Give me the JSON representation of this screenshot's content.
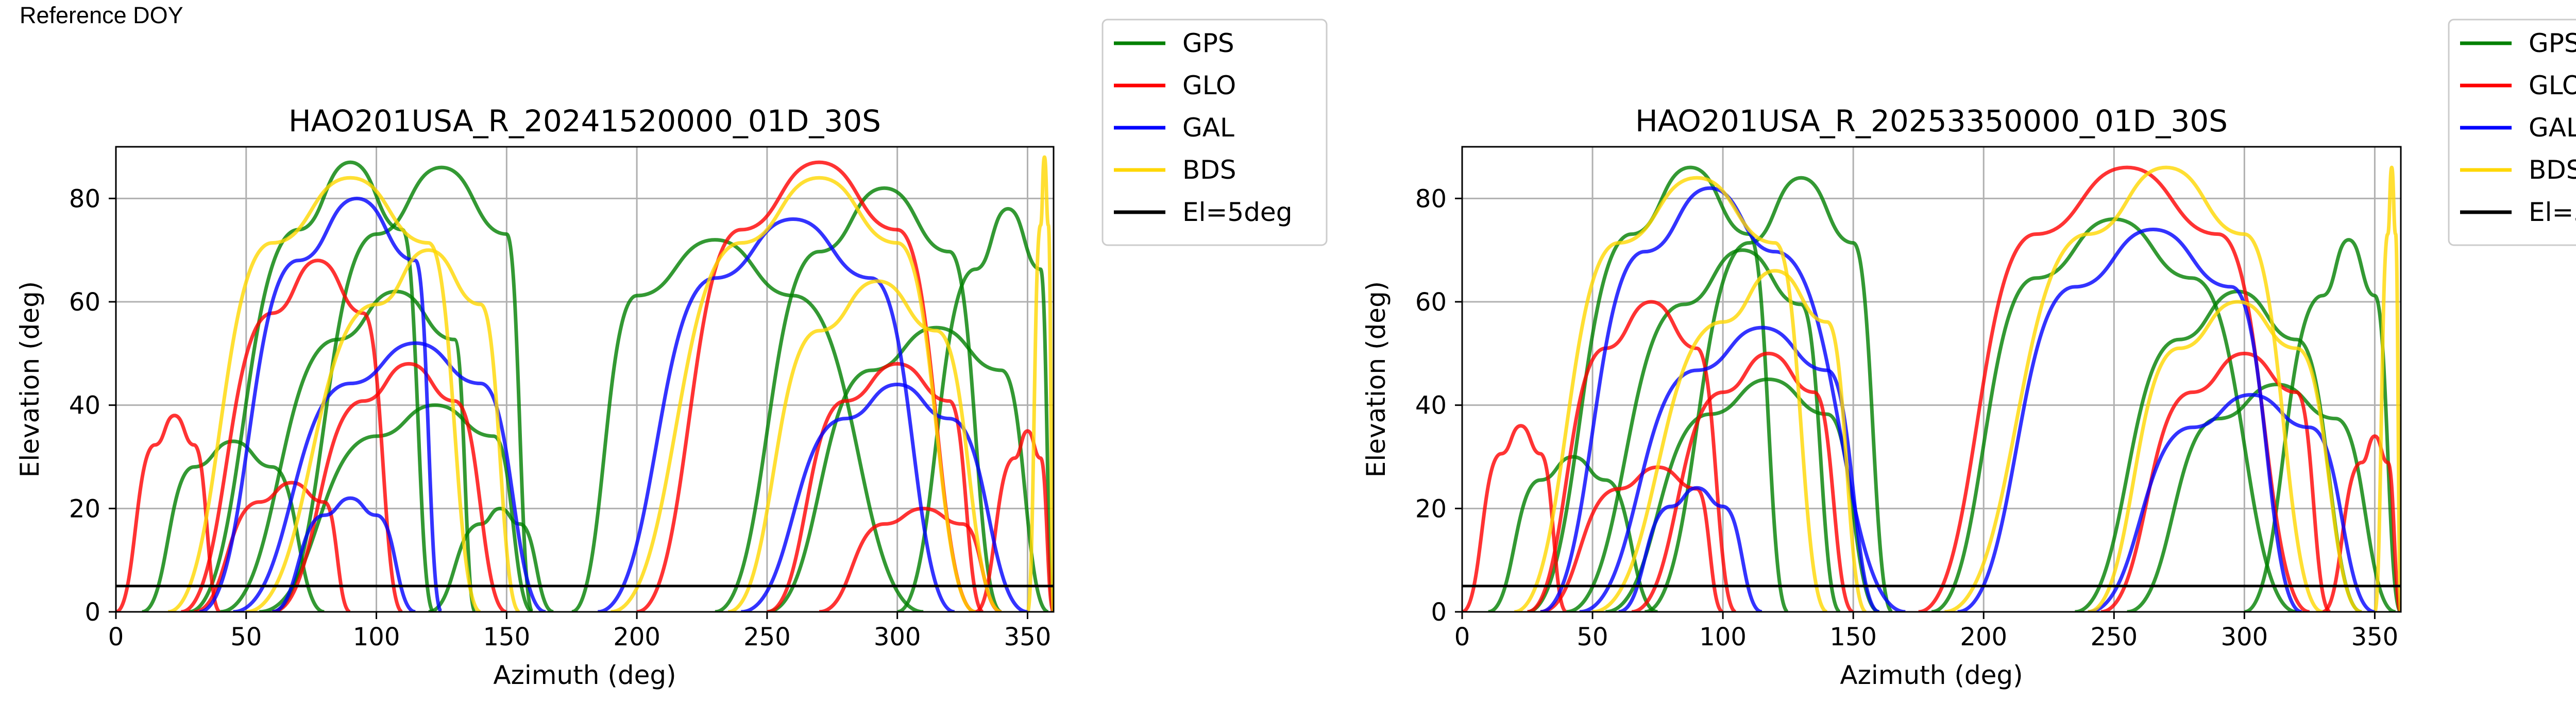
{
  "header": {
    "reference_label": "Reference DOY"
  },
  "legend_items": [
    {
      "label": "GPS",
      "color": "#008000"
    },
    {
      "label": "GLO",
      "color": "#ff0000"
    },
    {
      "label": "GAL",
      "color": "#0000ff"
    },
    {
      "label": "BDS",
      "color": "#ffd700"
    },
    {
      "label": "El=5deg",
      "color": "#000000"
    }
  ],
  "chart_data": [
    {
      "type": "scatter",
      "title": "HAO201USA_R_20241520000_01D_30S",
      "xlabel": "Azimuth (deg)",
      "ylabel": "Elevation (deg)",
      "xlim": [
        0,
        360
      ],
      "ylim": [
        0,
        90
      ],
      "xticks": [
        0,
        50,
        100,
        150,
        200,
        250,
        300,
        350
      ],
      "yticks": [
        0,
        20,
        40,
        60,
        80
      ],
      "grid": true,
      "legend_position": "outside-right",
      "elevation_mask_deg": 5,
      "series": [
        {
          "name": "GPS",
          "color": "#008000",
          "passes": [
            {
              "az": [
                28,
                70,
                110,
                122
              ],
              "peak": 87
            },
            {
              "az": [
                40,
                85,
                130,
                138
              ],
              "peak": 62
            },
            {
              "az": [
                55,
                100,
                145,
                160
              ],
              "peak": 40
            },
            {
              "az": [
                160,
                150,
                100,
                60
              ],
              "peak": 86
            },
            {
              "az": [
                175,
                200,
                260,
                310
              ],
              "peak": 72
            },
            {
              "az": [
                230,
                270,
                320,
                340
              ],
              "peak": 82
            },
            {
              "az": [
                250,
                290,
                340,
                358
              ],
              "peak": 55
            },
            {
              "az": [
                300,
                330,
                355,
                360
              ],
              "peak": 78
            },
            {
              "az": [
                10,
                30,
                60,
                80
              ],
              "peak": 33
            },
            {
              "az": [
                120,
                140,
                155,
                168
              ],
              "peak": 20
            }
          ]
        },
        {
          "name": "GLO",
          "color": "#ff0000",
          "passes": [
            {
              "az": [
                25,
                60,
                95,
                110
              ],
              "peak": 68
            },
            {
              "az": [
                30,
                55,
                80,
                90
              ],
              "peak": 25
            },
            {
              "az": [
                0,
                15,
                30,
                40
              ],
              "peak": 38
            },
            {
              "az": [
                200,
                240,
                300,
                330
              ],
              "peak": 87
            },
            {
              "az": [
                250,
                280,
                320,
                333
              ],
              "peak": 48
            },
            {
              "az": [
                330,
                345,
                355,
                360
              ],
              "peak": 35
            },
            {
              "az": [
                60,
                95,
                130,
                150
              ],
              "peak": 48
            },
            {
              "az": [
                270,
                295,
                325,
                340
              ],
              "peak": 20
            }
          ]
        },
        {
          "name": "GAL",
          "color": "#0000ff",
          "passes": [
            {
              "az": [
                32,
                70,
                115,
                125
              ],
              "peak": 80
            },
            {
              "az": [
                45,
                90,
                140,
                165
              ],
              "peak": 52
            },
            {
              "az": [
                185,
                230,
                290,
                322
              ],
              "peak": 76
            },
            {
              "az": [
                240,
                280,
                320,
                350
              ],
              "peak": 44
            },
            {
              "az": [
                60,
                80,
                100,
                115
              ],
              "peak": 22
            }
          ]
        },
        {
          "name": "BDS",
          "color": "#ffd700",
          "passes": [
            {
              "az": [
                20,
                60,
                120,
                140
              ],
              "peak": 84
            },
            {
              "az": [
                50,
                100,
                140,
                155
              ],
              "peak": 70
            },
            {
              "az": [
                190,
                240,
                300,
                330
              ],
              "peak": 84
            },
            {
              "az": [
                235,
                270,
                315,
                340
              ],
              "peak": 64
            },
            {
              "az": [
                350,
                355,
                358,
                360
              ],
              "peak": 88
            }
          ]
        }
      ]
    },
    {
      "type": "scatter",
      "title": "HAO201USA_R_20253350000_01D_30S",
      "xlabel": "Azimuth (deg)",
      "ylabel": "Elevation (deg)",
      "xlim": [
        0,
        360
      ],
      "ylim": [
        0,
        90
      ],
      "xticks": [
        0,
        50,
        100,
        150,
        200,
        250,
        300,
        350
      ],
      "yticks": [
        0,
        20,
        40,
        60,
        80
      ],
      "grid": true,
      "legend_position": "outside-right",
      "elevation_mask_deg": 5,
      "series": [
        {
          "name": "GPS",
          "color": "#008000",
          "passes": [
            {
              "az": [
                25,
                65,
                110,
                125
              ],
              "peak": 86
            },
            {
              "az": [
                40,
                85,
                130,
                145
              ],
              "peak": 70
            },
            {
              "az": [
                55,
                95,
                140,
                160
              ],
              "peak": 45
            },
            {
              "az": [
                165,
                150,
                110,
                70
              ],
              "peak": 84
            },
            {
              "az": [
                180,
                220,
                280,
                320
              ],
              "peak": 76
            },
            {
              "az": [
                235,
                275,
                320,
                345
              ],
              "peak": 62
            },
            {
              "az": [
                255,
                290,
                335,
                358
              ],
              "peak": 44
            },
            {
              "az": [
                300,
                330,
                350,
                360
              ],
              "peak": 72
            },
            {
              "az": [
                10,
                30,
                55,
                75
              ],
              "peak": 30
            }
          ]
        },
        {
          "name": "GLO",
          "color": "#ff0000",
          "passes": [
            {
              "az": [
                25,
                55,
                90,
                105
              ],
              "peak": 60
            },
            {
              "az": [
                30,
                60,
                90,
                100
              ],
              "peak": 28
            },
            {
              "az": [
                0,
                15,
                30,
                40
              ],
              "peak": 36
            },
            {
              "az": [
                175,
                220,
                290,
                325
              ],
              "peak": 86
            },
            {
              "az": [
                245,
                280,
                320,
                333
              ],
              "peak": 50
            },
            {
              "az": [
                330,
                345,
                355,
                360
              ],
              "peak": 34
            },
            {
              "az": [
                65,
                100,
                135,
                150
              ],
              "peak": 50
            }
          ]
        },
        {
          "name": "GAL",
          "color": "#0000ff",
          "passes": [
            {
              "az": [
                30,
                70,
                120,
                170
              ],
              "peak": 82
            },
            {
              "az": [
                45,
                90,
                140,
                160
              ],
              "peak": 55
            },
            {
              "az": [
                190,
                235,
                295,
                322
              ],
              "peak": 74
            },
            {
              "az": [
                240,
                280,
                325,
                350
              ],
              "peak": 42
            },
            {
              "az": [
                60,
                80,
                100,
                115
              ],
              "peak": 24
            }
          ]
        },
        {
          "name": "BDS",
          "color": "#ffd700",
          "passes": [
            {
              "az": [
                20,
                60,
                120,
                140
              ],
              "peak": 84
            },
            {
              "az": [
                50,
                100,
                140,
                155
              ],
              "peak": 66
            },
            {
              "az": [
                185,
                240,
                300,
                330
              ],
              "peak": 86
            },
            {
              "az": [
                240,
                275,
                320,
                345
              ],
              "peak": 60
            },
            {
              "az": [
                350,
                355,
                358,
                360
              ],
              "peak": 86
            }
          ]
        }
      ]
    }
  ]
}
